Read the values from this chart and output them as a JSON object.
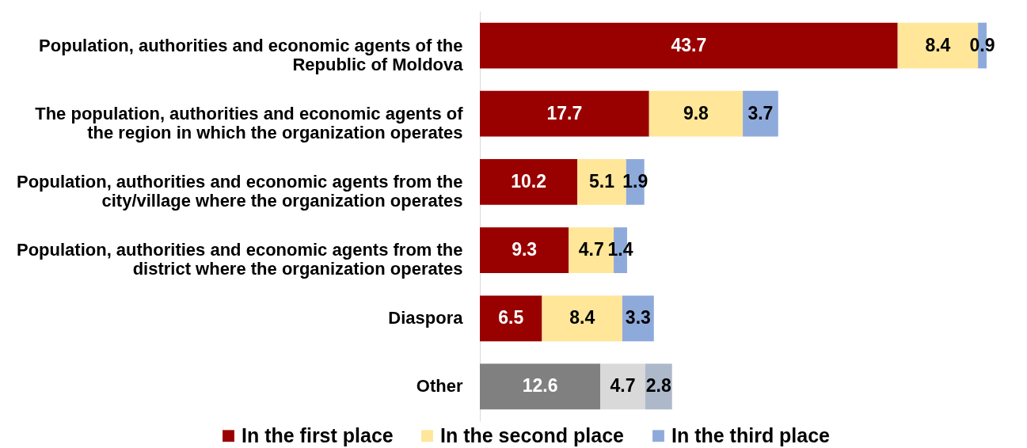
{
  "chart_data": {
    "type": "bar",
    "orientation": "horizontal",
    "stacked": true,
    "data_labels": true,
    "legend": "bottom",
    "categories": [
      "Population, authorities and economic agents of the Republic of Moldova",
      "The population, authorities and economic agents of the region in which the organization operates",
      "Population, authorities and economic agents from the city/village where the organization operates",
      "Population, authorities and economic agents from the district where the organization operates",
      "Diaspora",
      "Other"
    ],
    "series": [
      {
        "name": "In the first place",
        "color": "#990000",
        "colors": [
          "#990000",
          "#990000",
          "#990000",
          "#990000",
          "#990000",
          "#808080"
        ],
        "values": [
          43.7,
          17.7,
          10.2,
          9.3,
          6.5,
          12.6
        ]
      },
      {
        "name": "In the second place",
        "color": "#ffe699",
        "colors": [
          "#ffe699",
          "#ffe699",
          "#ffe699",
          "#ffe699",
          "#ffe699",
          "#d9d9d9"
        ],
        "values": [
          8.4,
          9.8,
          5.1,
          4.7,
          8.4,
          4.7
        ]
      },
      {
        "name": "In the third place",
        "color": "#8eaadb",
        "colors": [
          "#8eaadb",
          "#8eaadb",
          "#8eaadb",
          "#8eaadb",
          "#8eaadb",
          "#adb9ca"
        ],
        "values": [
          0.9,
          3.7,
          1.9,
          1.4,
          3.3,
          2.8
        ]
      }
    ]
  }
}
